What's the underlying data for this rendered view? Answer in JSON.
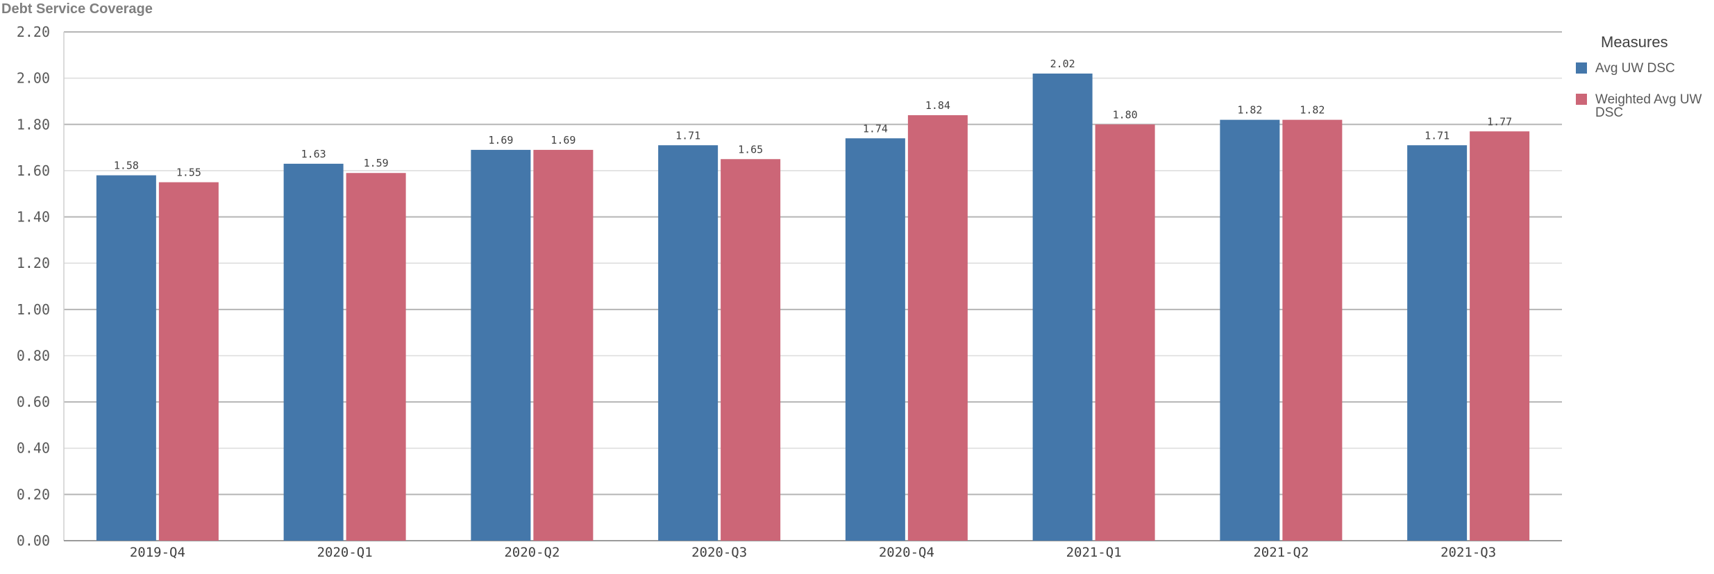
{
  "chart_data": {
    "type": "bar",
    "title": "Debt Service Coverage",
    "xlabel": "",
    "ylabel": "",
    "ylim": [
      0,
      2.2
    ],
    "yticks": [
      "0.00",
      "0.20",
      "0.40",
      "0.60",
      "0.80",
      "1.00",
      "1.20",
      "1.40",
      "1.60",
      "1.80",
      "2.00",
      "2.20"
    ],
    "categories": [
      "2019-Q4",
      "2020-Q1",
      "2020-Q2",
      "2020-Q3",
      "2020-Q4",
      "2021-Q1",
      "2021-Q2",
      "2021-Q3"
    ],
    "series": [
      {
        "name": "Avg UW DSC",
        "color": "#4477aa",
        "values": [
          1.58,
          1.63,
          1.69,
          1.71,
          1.74,
          2.02,
          1.82,
          1.71
        ],
        "labels": [
          "1.58",
          "1.63",
          "1.69",
          "1.71",
          "1.74",
          "2.02",
          "1.82",
          "1.71"
        ]
      },
      {
        "name": "Weighted Avg UW DSC",
        "color": "#cc6677",
        "values": [
          1.55,
          1.59,
          1.69,
          1.65,
          1.84,
          1.8,
          1.82,
          1.77
        ],
        "labels": [
          "1.55",
          "1.59",
          "1.69",
          "1.65",
          "1.84",
          "1.80",
          "1.82",
          "1.77"
        ]
      }
    ],
    "legend": {
      "title": "Measures",
      "position": "right",
      "entries": [
        "Avg UW DSC",
        "Weighted Avg UW DSC"
      ]
    },
    "grid": true
  }
}
